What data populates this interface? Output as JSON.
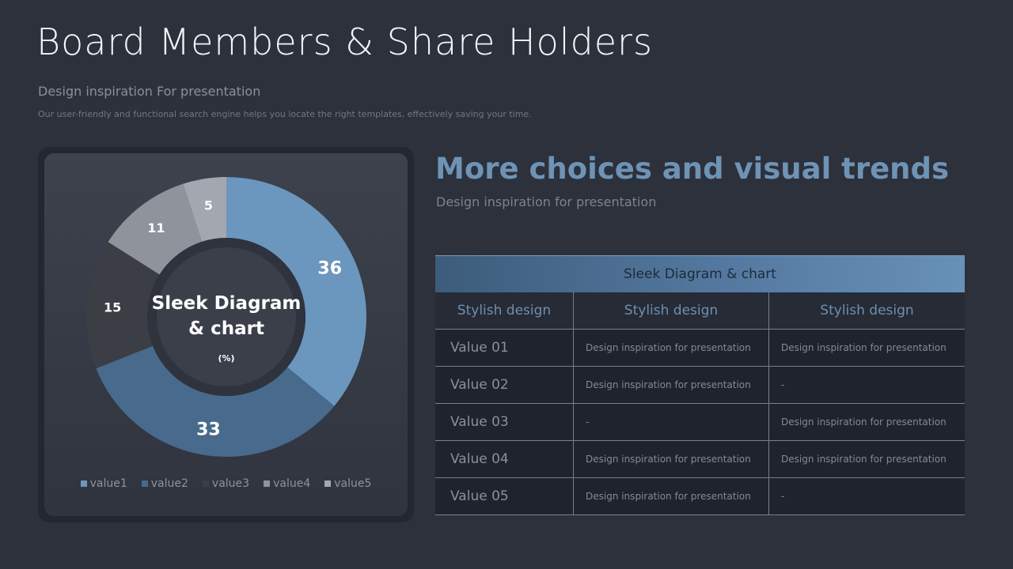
{
  "page": {
    "title": "Board Members & Share Holders",
    "subtitle": "Design inspiration For presentation",
    "description": "Our user-friendly and functional search engine helps you locate the right templates, effectively saving your time."
  },
  "chart_data": {
    "type": "pie",
    "center_title_line1": "Sleek Diagram",
    "center_title_line2": "& chart",
    "center_unit": "(%)",
    "categories": [
      "value1",
      "value2",
      "value3",
      "value4",
      "value5"
    ],
    "values": [
      36,
      33,
      15,
      11,
      5
    ],
    "colors": [
      "#6b96bd",
      "#486a8c",
      "#3b3e44",
      "#8f939b",
      "#a3a7b0"
    ],
    "label_colors": [
      "#ffffff",
      "#ffffff",
      "#ffffff",
      "#ffffff",
      "#ffffff"
    ],
    "legend_position": "bottom"
  },
  "right": {
    "heading": "More choices and visual trends",
    "heading_sub": "Design inspiration for presentation"
  },
  "table": {
    "title": "Sleek Diagram & chart",
    "columns": [
      "Stylish design",
      "Stylish design",
      "Stylish design"
    ],
    "rows": [
      [
        "Value 01",
        "Design inspiration for presentation",
        "Design inspiration for presentation"
      ],
      [
        "Value 02",
        "Design inspiration for presentation",
        "-"
      ],
      [
        "Value 03",
        "-",
        "Design inspiration for presentation"
      ],
      [
        "Value 04",
        "Design inspiration for presentation",
        "Design inspiration for presentation"
      ],
      [
        "Value 05",
        "Design inspiration for presentation",
        "-"
      ]
    ]
  }
}
